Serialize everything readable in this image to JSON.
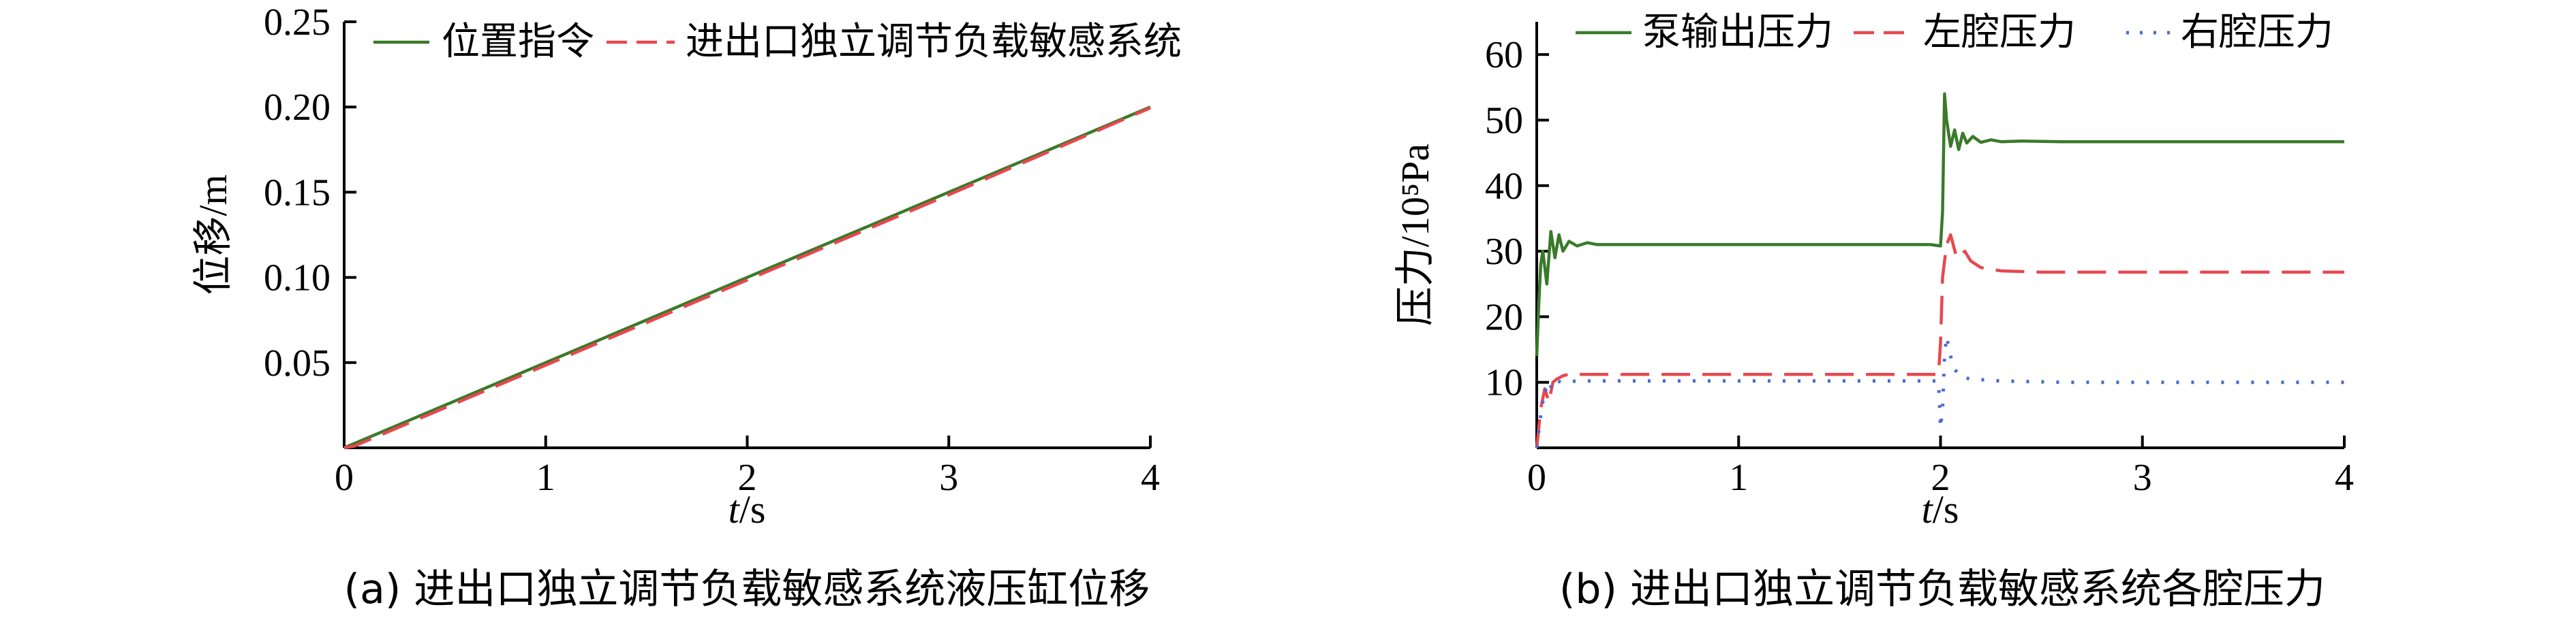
{
  "chart_data": [
    {
      "type": "line",
      "caption": "(a) 进出口独立调节负载敏感系统液压缸位移",
      "xlabel_italic": "t",
      "xlabel_unit": "/s",
      "ylabel": "位移/m",
      "xlim": [
        0,
        4
      ],
      "ylim": [
        0,
        0.25
      ],
      "xticks": [
        0,
        1,
        2,
        3,
        4
      ],
      "yticks": [
        0.05,
        0.1,
        0.15,
        0.2,
        0.25
      ],
      "ytick_labels": [
        "0.05",
        "0.10",
        "0.15",
        "0.20",
        "0.25"
      ],
      "xtick_labels": [
        "0",
        "1",
        "2",
        "3",
        "4"
      ],
      "grid": false,
      "legend_position": "top",
      "series": [
        {
          "name": "位置指令",
          "color": "#3a7a2a",
          "style": "solid",
          "x": [
            0,
            4
          ],
          "y": [
            0,
            0.2
          ]
        },
        {
          "name": "进出口独立调节负载敏感系统",
          "color": "#e8474f",
          "style": "dashed",
          "x": [
            0,
            0.05,
            0.1,
            0.5,
            1,
            2,
            3,
            4
          ],
          "y": [
            0,
            0.001,
            0.0035,
            0.0235,
            0.0485,
            0.0985,
            0.1485,
            0.1995
          ]
        }
      ]
    },
    {
      "type": "line",
      "caption": "(b) 进出口独立调节负载敏感系统各腔压力",
      "xlabel_italic": "t",
      "xlabel_unit": "/s",
      "ylabel": "压力/10⁵Pa",
      "xlim": [
        0,
        4
      ],
      "ylim": [
        0,
        65
      ],
      "xticks": [
        0,
        1,
        2,
        3,
        4
      ],
      "yticks": [
        10,
        20,
        30,
        40,
        50,
        60
      ],
      "ytick_labels": [
        "10",
        "20",
        "30",
        "40",
        "50",
        "60"
      ],
      "xtick_labels": [
        "0",
        "1",
        "2",
        "3",
        "4"
      ],
      "grid": false,
      "legend_position": "top",
      "series": [
        {
          "name": "泵输出压力",
          "color": "#3a7a2a",
          "style": "solid",
          "x": [
            0,
            0.01,
            0.02,
            0.03,
            0.05,
            0.07,
            0.09,
            0.11,
            0.13,
            0.16,
            0.2,
            0.25,
            0.3,
            0.5,
            1,
            1.5,
            1.95,
            2.0,
            2.01,
            2.02,
            2.03,
            2.05,
            2.07,
            2.09,
            2.11,
            2.13,
            2.16,
            2.2,
            2.25,
            2.3,
            2.4,
            2.6,
            3,
            3.5,
            4
          ],
          "y": [
            14,
            22,
            28,
            30,
            25,
            33,
            29,
            32.5,
            30,
            31.5,
            30.8,
            31.3,
            31,
            31,
            31,
            31,
            31,
            30.8,
            36,
            54,
            50,
            46,
            48.5,
            45.5,
            48,
            46.5,
            47.5,
            46.6,
            47,
            46.7,
            46.8,
            46.7,
            46.7,
            46.7,
            46.7
          ]
        },
        {
          "name": "左腔压力",
          "color": "#e8474f",
          "style": "dashed",
          "x": [
            0,
            0.02,
            0.04,
            0.06,
            0.08,
            0.1,
            0.13,
            0.17,
            0.2,
            0.3,
            0.5,
            1,
            1.5,
            1.99,
            2.0,
            2.01,
            2.03,
            2.05,
            2.08,
            2.12,
            2.15,
            2.2,
            2.3,
            2.5,
            3,
            4
          ],
          "y": [
            0,
            6,
            9,
            7,
            10,
            10.5,
            11,
            11.3,
            11.2,
            11.2,
            11.2,
            11.2,
            11.2,
            11.2,
            16,
            26,
            31,
            32.5,
            29,
            30,
            28.5,
            27.5,
            27,
            26.8,
            26.8,
            26.8
          ]
        },
        {
          "name": "右腔压力",
          "color": "#4a6ad0",
          "style": "dotted",
          "x": [
            0,
            0.02,
            0.04,
            0.06,
            0.08,
            0.12,
            0.2,
            0.3,
            0.6,
            1,
            1.5,
            1.99,
            2.0,
            2.01,
            2.02,
            2.03,
            2.05,
            2.07,
            2.1,
            2.15,
            2.3,
            2.6,
            3,
            4
          ],
          "y": [
            0,
            5,
            9,
            8,
            10.5,
            10,
            10.2,
            10.2,
            10.2,
            10.2,
            10.2,
            10.2,
            3,
            6,
            14,
            17,
            14,
            12,
            10.8,
            10.5,
            10.2,
            10,
            10,
            10
          ]
        }
      ]
    }
  ]
}
